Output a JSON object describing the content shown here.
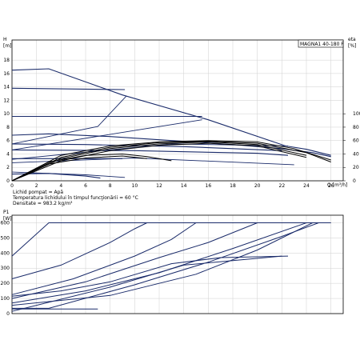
{
  "chart_data": [
    {
      "type": "line",
      "title": "MAGNA1 40-180 F",
      "xlabel": "Q [m³/h]",
      "ylabel": "H [m]",
      "y2label": "eta [%]",
      "xlim": [
        0,
        26
      ],
      "ylim": [
        0,
        20
      ],
      "y2lim": [
        0,
        100
      ],
      "grid": true,
      "x_ticks": [
        "0",
        "2",
        "4",
        "6",
        "8",
        "10",
        "12",
        "14",
        "16",
        "18",
        "20",
        "22",
        "24",
        "26"
      ],
      "y_ticks": [
        "0",
        "2",
        "4",
        "6",
        "8",
        "10",
        "12",
        "14",
        "16",
        "18"
      ],
      "y2_ticks": [
        "0",
        "20",
        "40",
        "60",
        "80",
        "100"
      ],
      "head_curves": [
        {
          "points": [
            [
              0,
              16.5
            ],
            [
              3,
              16.7
            ],
            [
              9,
              12.8
            ],
            [
              16,
              9.1
            ],
            [
              22.3,
              5.2
            ],
            [
              24,
              4.7
            ],
            [
              26,
              3.8
            ]
          ]
        },
        {
          "points": [
            [
              0,
              13.8
            ],
            [
              9.2,
              13.6
            ]
          ]
        },
        {
          "points": [
            [
              0,
              9.6
            ],
            [
              15.5,
              9.6
            ]
          ]
        },
        {
          "points": [
            [
              0,
              6.8
            ],
            [
              3,
              7.0
            ],
            [
              8,
              6.6
            ],
            [
              13,
              6.0
            ],
            [
              18,
              5.4
            ],
            [
              22,
              4.8
            ],
            [
              24.5,
              4.2
            ],
            [
              26,
              3.6
            ]
          ]
        },
        {
          "points": [
            [
              0,
              5.5
            ],
            [
              6,
              5.4
            ],
            [
              14,
              5.1
            ],
            [
              22,
              4.5
            ]
          ]
        },
        {
          "points": [
            [
              0,
              4.6
            ],
            [
              10,
              4.5
            ],
            [
              20,
              4.1
            ],
            [
              22.5,
              3.8
            ]
          ]
        },
        {
          "points": [
            [
              0,
              3.3
            ],
            [
              9,
              3.3
            ]
          ]
        },
        {
          "points": [
            [
              0,
              1.0
            ],
            [
              3,
              1.1
            ],
            [
              6,
              0.7
            ],
            [
              7.2,
              0.4
            ]
          ]
        }
      ],
      "system_curves": [
        {
          "points": [
            [
              0,
              5.5
            ],
            [
              7,
              8.1
            ],
            [
              9.3,
              12.6
            ]
          ]
        },
        {
          "points": [
            [
              0,
              4.6
            ],
            [
              10,
              7.5
            ],
            [
              15.5,
              9.1
            ]
          ]
        },
        {
          "points": [
            [
              0,
              3.2
            ],
            [
              13,
              5.5
            ],
            [
              22.5,
              5.2
            ]
          ]
        },
        {
          "points": [
            [
              0,
              2.7
            ],
            [
              10,
              3.4
            ],
            [
              23,
              2.4
            ]
          ]
        },
        {
          "points": [
            [
              0,
              1.3
            ],
            [
              6,
              0.9
            ],
            [
              9.2,
              0.5
            ]
          ]
        }
      ],
      "efficiency_curves": [
        {
          "points": [
            [
              0,
              0
            ],
            [
              4,
              38
            ],
            [
              8,
              52
            ],
            [
              12,
              58
            ],
            [
              16,
              60
            ],
            [
              20,
              58
            ],
            [
              23,
              48
            ],
            [
              26,
              31
            ]
          ]
        },
        {
          "points": [
            [
              0,
              0
            ],
            [
              4,
              35
            ],
            [
              8,
              50
            ],
            [
              12,
              57
            ],
            [
              16,
              59
            ],
            [
              20,
              56
            ],
            [
              24,
              42
            ],
            [
              26,
              28
            ]
          ]
        },
        {
          "points": [
            [
              0,
              0
            ],
            [
              4,
              33
            ],
            [
              8,
              48
            ],
            [
              12,
              55
            ],
            [
              16,
              58
            ],
            [
              20,
              54
            ],
            [
              24,
              38
            ]
          ]
        },
        {
          "points": [
            [
              0,
              0
            ],
            [
              4,
              30
            ],
            [
              8,
              45
            ],
            [
              12,
              53
            ],
            [
              16,
              56
            ],
            [
              20,
              52
            ],
            [
              24,
              35
            ]
          ]
        },
        {
          "points": [
            [
              0,
              0
            ],
            [
              3,
              28
            ],
            [
              6,
              38
            ],
            [
              9,
              40
            ],
            [
              11,
              36
            ],
            [
              13,
              30
            ]
          ]
        },
        {
          "points": [
            [
              0,
              0
            ],
            [
              3,
              25
            ],
            [
              6,
              34
            ],
            [
              9,
              37
            ],
            [
              11,
              33
            ]
          ]
        }
      ]
    },
    {
      "type": "line",
      "xlabel": "",
      "ylabel": "P1 [W]",
      "xlim": [
        0,
        26
      ],
      "ylim": [
        0,
        600
      ],
      "grid": true,
      "y_ticks": [
        "0",
        "100",
        "200",
        "300",
        "400",
        "500",
        "600"
      ],
      "power_curves": [
        {
          "points": [
            [
              0,
              380
            ],
            [
              3,
              600
            ],
            [
              26,
              600
            ]
          ]
        },
        {
          "points": [
            [
              0,
              230
            ],
            [
              4,
              320
            ],
            [
              8,
              470
            ],
            [
              10,
              560
            ],
            [
              11,
              600
            ]
          ]
        },
        {
          "points": [
            [
              0,
              125
            ],
            [
              5,
              230
            ],
            [
              10,
              380
            ],
            [
              13,
              490
            ],
            [
              15,
              600
            ]
          ]
        },
        {
          "points": [
            [
              0,
              100
            ],
            [
              6,
              210
            ],
            [
              12,
              370
            ],
            [
              16,
              470
            ],
            [
              20,
              600
            ]
          ]
        },
        {
          "points": [
            [
              0,
              70
            ],
            [
              6,
              150
            ],
            [
              12,
              270
            ],
            [
              18,
              430
            ],
            [
              24,
              600
            ]
          ]
        },
        {
          "points": [
            [
              0,
              55
            ],
            [
              8,
              120
            ],
            [
              15,
              260
            ],
            [
              20,
              420
            ],
            [
              24.5,
              600
            ]
          ]
        },
        {
          "points": [
            [
              0,
              35
            ],
            [
              3,
              35
            ],
            [
              10,
              190
            ],
            [
              16,
              340
            ],
            [
              22,
              510
            ],
            [
              25,
              600
            ]
          ]
        },
        {
          "points": [
            [
              0,
              15
            ],
            [
              8,
              175
            ],
            [
              14,
              320
            ],
            [
              22,
              380
            ]
          ]
        },
        {
          "points": [
            [
              0,
              115
            ],
            [
              4,
              150
            ],
            [
              8,
              210
            ],
            [
              13,
              330
            ],
            [
              17,
              370
            ],
            [
              22.5,
              380
            ]
          ]
        },
        {
          "points": [
            [
              0,
              30
            ],
            [
              7,
              30
            ]
          ]
        }
      ]
    }
  ],
  "notes": {
    "line1": "Lichid pompat = Apă",
    "line2": "Temperatura lichidului în timpul funcţionării = 60 °C",
    "line3": "Densitate = 983.2 kg/m³"
  }
}
